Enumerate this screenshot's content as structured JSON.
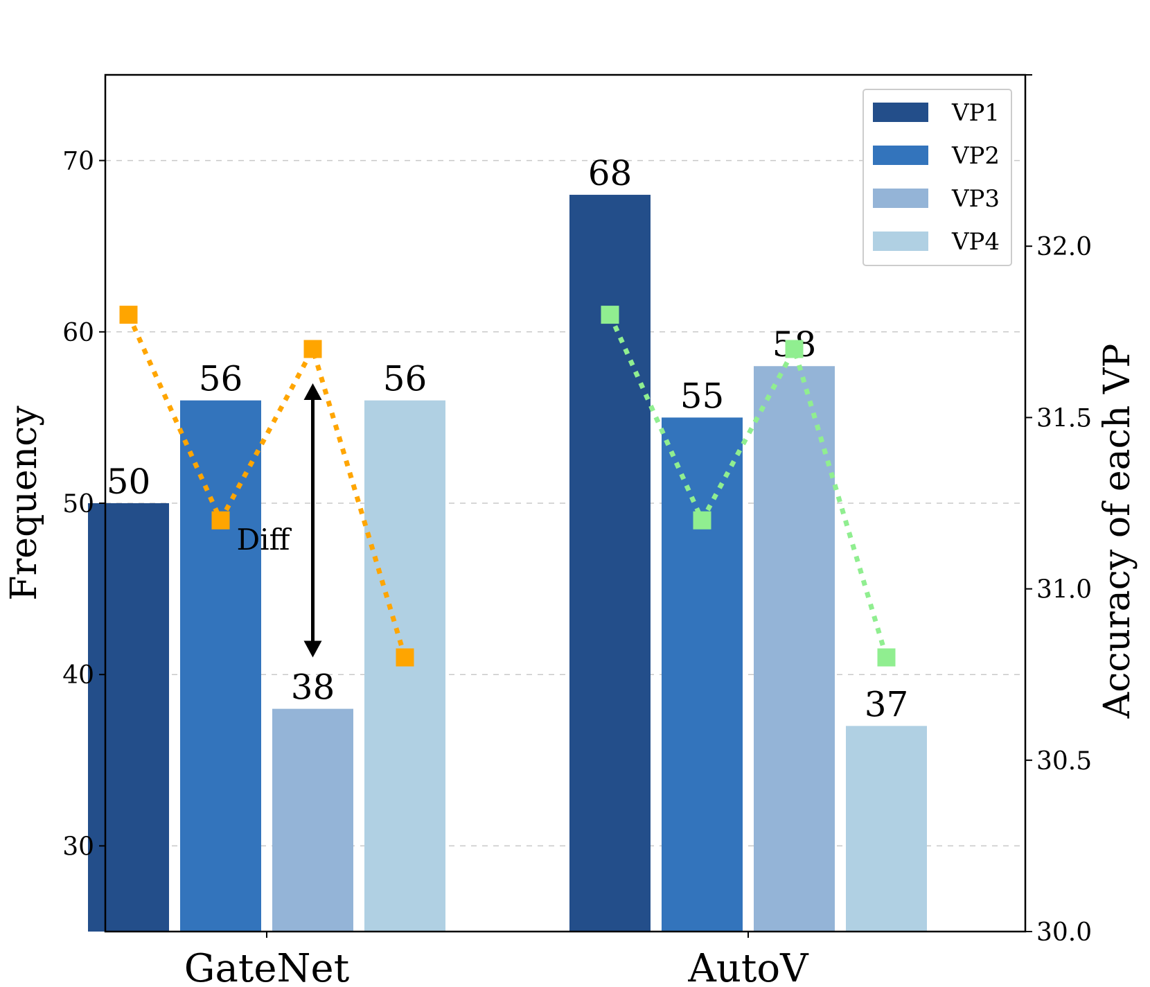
{
  "chart_data": {
    "type": "bar",
    "categories": [
      "GateNet",
      "AutoV"
    ],
    "series": [
      {
        "name": "VP1",
        "values": [
          50,
          68
        ],
        "color": "#234e8a"
      },
      {
        "name": "VP2",
        "values": [
          56,
          55
        ],
        "color": "#3374bc"
      },
      {
        "name": "VP3",
        "values": [
          38,
          58
        ],
        "color": "#94b4d7"
      },
      {
        "name": "VP4",
        "values": [
          56,
          37
        ],
        "color": "#b0d0e3"
      }
    ],
    "ylabel": "Frequency",
    "ylim": [
      25,
      75
    ],
    "yticks": [
      30,
      40,
      50,
      60,
      70
    ],
    "y2label": "Accuracy of each VP",
    "y2lim": [
      30.0,
      32.5
    ],
    "y2ticks": [
      "30.0",
      "30.5",
      "31.0",
      "31.5",
      "32.0"
    ],
    "grid": "horizontal dashed",
    "legend_position": "top-right",
    "accuracy_lines": [
      {
        "category": "GateNet",
        "values": [
          31.8,
          31.2,
          31.7,
          30.8
        ],
        "color": "#ffa500"
      },
      {
        "category": "AutoV",
        "values": [
          31.8,
          31.2,
          31.7,
          30.8
        ],
        "color": "#90ee90"
      }
    ],
    "annotation": {
      "text": "Diff",
      "from_value": 57,
      "to_value": 41
    }
  }
}
